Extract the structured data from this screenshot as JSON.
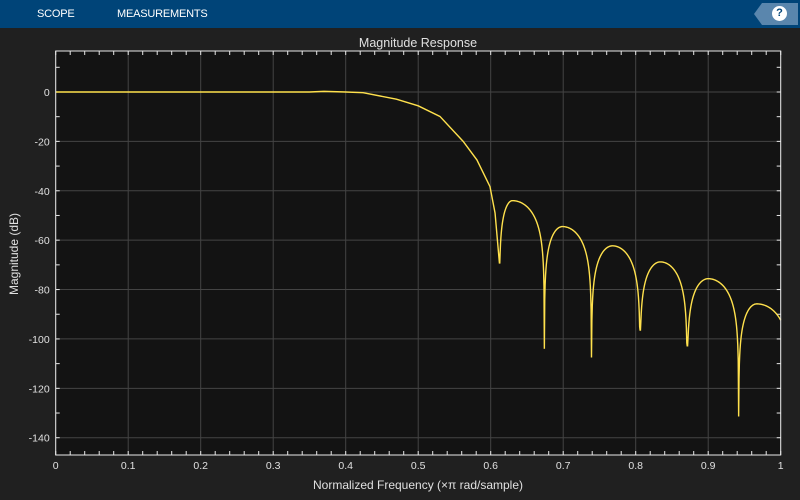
{
  "toolstrip": {
    "tabs": [
      "SCOPE",
      "MEASUREMENTS"
    ],
    "help_label": "?",
    "help_icon": "help-icon"
  },
  "colors": {
    "toolstrip": "#004478",
    "background": "#202020",
    "plot_background": "#131313",
    "grid": "#444444",
    "line": "#ffe14d"
  },
  "chart_data": {
    "type": "line",
    "title": "Magnitude Response",
    "xlabel": "Normalized Frequency (×π rad/sample)",
    "ylabel": "Magnitude (dB)",
    "xlim": [
      0,
      1
    ],
    "ylim": [
      -147,
      16.6
    ],
    "xticks": [
      0,
      0.1,
      0.2,
      0.3,
      0.4,
      0.5,
      0.6,
      0.7,
      0.8,
      0.9,
      1
    ],
    "xtick_labels": [
      "0",
      "0.1",
      "0.2",
      "0.3",
      "0.4",
      "0.5",
      "0.6",
      "0.7",
      "0.8",
      "0.9",
      "1"
    ],
    "yticks": [
      0,
      -20,
      -40,
      -60,
      -80,
      -100,
      -120,
      -140
    ],
    "ytick_labels": [
      "0",
      "-20",
      "-40",
      "-60",
      "-80",
      "-100",
      "-120",
      "-140"
    ],
    "grid": true,
    "series": [
      {
        "color": "#ffe14d",
        "transition": {
          "x": [
            0,
            0.35,
            0.37,
            0.4,
            0.424,
            0.47,
            0.5,
            0.53,
            0.562,
            0.581,
            0.599,
            0.606,
            0.612
          ],
          "y": [
            0,
            0,
            0.25,
            0,
            -0.3,
            -2.9,
            -5.6,
            -9.9,
            -20,
            -27.5,
            -38.3,
            -49,
            -69.2
          ]
        },
        "nulls": {
          "x": [
            0.612,
            0.674,
            0.739,
            0.806,
            0.871,
            0.942
          ],
          "y": [
            -69.2,
            -104,
            -107.5,
            -96.4,
            -102.8,
            -131.4
          ]
        },
        "peaks": {
          "x": [
            0.63,
            0.699,
            0.768,
            0.834,
            0.9,
            0.967
          ],
          "y": [
            -44,
            -54.5,
            -62.3,
            -68.8,
            -75.6,
            -85.8
          ]
        },
        "end": {
          "x": 1,
          "y": -90.3
        }
      }
    ]
  }
}
